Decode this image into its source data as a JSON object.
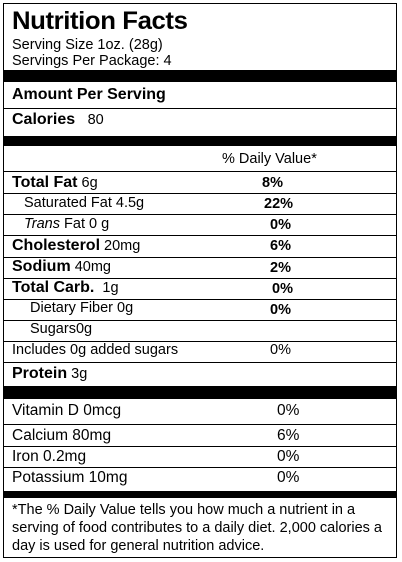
{
  "header": {
    "title": "Nutrition Facts",
    "serving_size": "Serving Size 1oz.  (28g)",
    "servings_per_package": "Servings Per Package: 4"
  },
  "amount_per_serving": "Amount Per Serving",
  "calories": {
    "label": "Calories",
    "value": "80"
  },
  "daily_value_header": "% Daily Value*",
  "nutrients": [
    {
      "name": "Total Fat",
      "amount": "6g",
      "dv": "8%"
    },
    {
      "name": "Saturated Fat",
      "amount": "4.5g",
      "dv": "22%"
    },
    {
      "name_italic": "Trans",
      "name": "Fat",
      "amount": "0 g",
      "dv": "0%"
    },
    {
      "name": "Cholesterol",
      "amount": "20mg",
      "dv": "6%"
    },
    {
      "name": "Sodium",
      "amount": "40mg",
      "dv": "2%"
    },
    {
      "name": "Total Carb.",
      "amount": "1g",
      "dv": "0%"
    },
    {
      "name": "Dietary Fiber",
      "amount": "0g",
      "dv": "0%"
    },
    {
      "name": "Sugars",
      "amount": "0g",
      "dv": ""
    },
    {
      "name": "Includes 0g added sugars",
      "amount": "",
      "dv": "0%"
    },
    {
      "name": "Protein",
      "amount": "3g",
      "dv": ""
    }
  ],
  "vitamins": [
    {
      "name": "Vitamin D 0mcg",
      "dv": "0%"
    },
    {
      "name": "Calcium 80mg",
      "dv": "6%"
    },
    {
      "name": "Iron 0.2mg",
      "dv": "0%"
    },
    {
      "name": "Potassium 10mg",
      "dv": "0%"
    }
  ],
  "footnote": "*The % Daily Value tells you how much a nutrient in a serving of food contributes to a daily diet. 2,000 calories a day is used for general nutrition advice."
}
